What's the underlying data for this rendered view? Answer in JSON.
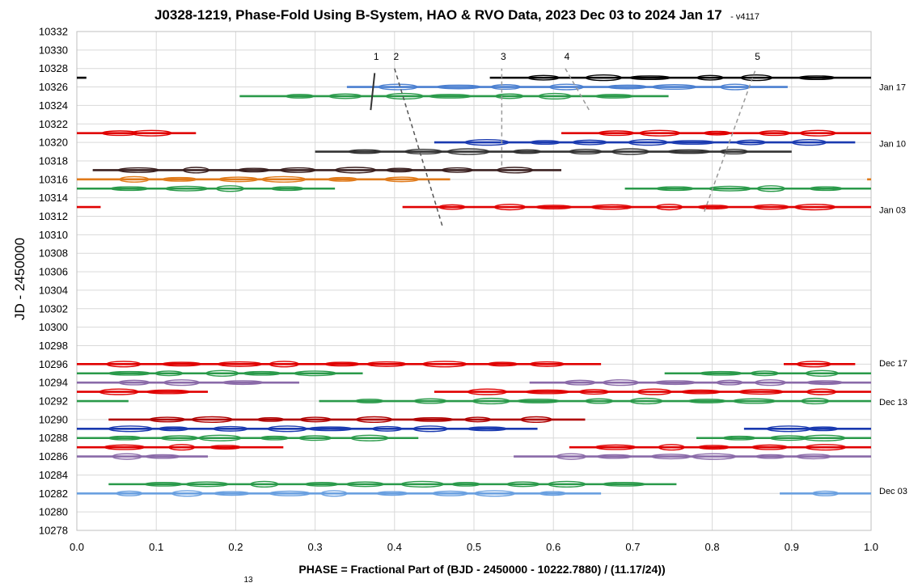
{
  "chart_data": {
    "type": "line",
    "title": "J0328-1219, Phase-Fold Using B-System, HAO & RVO Data, 2023 Dec 03 to 2024 Jan 17",
    "title_suffix": "- v4117",
    "xlabel": "PHASE = Fractional Part of (BJD - 2450000 - 10222.7880) / (11.17/24))",
    "ylabel": "JD - 2450000",
    "footnote": "13",
    "xlim": [
      0.0,
      1.0
    ],
    "ylim": [
      10278,
      10332
    ],
    "x_tick_step": 0.1,
    "y_tick_step": 2,
    "grid": true,
    "date_labels": [
      {
        "text": "Jan 17",
        "y": 10326
      },
      {
        "text": "Jan 10",
        "y": 10319.9
      },
      {
        "text": "Jan 03",
        "y": 10312.7
      },
      {
        "text": "Dec 17",
        "y": 10296.1
      },
      {
        "text": "Dec 13",
        "y": 10291.9
      },
      {
        "text": "Dec 03",
        "y": 10282.3
      }
    ],
    "series": [
      {
        "color": "#000000",
        "y": 10327,
        "segments": [
          [
            0.0,
            0.012
          ],
          [
            0.52,
            1.0
          ]
        ]
      },
      {
        "color": "#4a7fd0",
        "y": 10326,
        "segments": [
          [
            0.34,
            0.895
          ]
        ]
      },
      {
        "color": "#2a9a4a",
        "y": 10325,
        "segments": [
          [
            0.205,
            0.745
          ]
        ]
      },
      {
        "color": "#e00000",
        "y": 10321,
        "segments": [
          [
            0.0,
            0.15
          ],
          [
            0.61,
            1.0
          ]
        ]
      },
      {
        "color": "#1a3ab0",
        "y": 10320,
        "segments": [
          [
            0.45,
            0.98
          ]
        ]
      },
      {
        "color": "#333333",
        "y": 10319,
        "segments": [
          [
            0.3,
            0.9
          ]
        ]
      },
      {
        "color": "#3b2020",
        "y": 10317,
        "segments": [
          [
            0.02,
            0.61
          ]
        ]
      },
      {
        "color": "#e07a1a",
        "y": 10316,
        "segments": [
          [
            0.0,
            0.47
          ],
          [
            0.995,
            1.0
          ]
        ]
      },
      {
        "color": "#2a9a4a",
        "y": 10315,
        "segments": [
          [
            0.0,
            0.325
          ],
          [
            0.69,
            1.0
          ]
        ]
      },
      {
        "color": "#e00000",
        "y": 10313,
        "segments": [
          [
            0.0,
            0.03
          ],
          [
            0.41,
            1.0
          ]
        ]
      },
      {
        "color": "#e00000",
        "y": 10296,
        "segments": [
          [
            0.0,
            0.66
          ],
          [
            0.89,
            0.98
          ]
        ]
      },
      {
        "color": "#2a9a4a",
        "y": 10295,
        "segments": [
          [
            0.0,
            0.36
          ],
          [
            0.74,
            1.0
          ]
        ]
      },
      {
        "color": "#8a6aa8",
        "y": 10294,
        "segments": [
          [
            0.0,
            0.28
          ],
          [
            0.57,
            1.0
          ]
        ]
      },
      {
        "color": "#e00000",
        "y": 10293,
        "segments": [
          [
            0.0,
            0.165
          ],
          [
            0.45,
            1.0
          ]
        ]
      },
      {
        "color": "#2a9a4a",
        "y": 10292,
        "segments": [
          [
            0.0,
            0.065
          ],
          [
            0.305,
            1.0
          ]
        ]
      },
      {
        "color": "#b00000",
        "y": 10290,
        "segments": [
          [
            0.04,
            0.64
          ]
        ]
      },
      {
        "color": "#1a3ab0",
        "y": 10289,
        "segments": [
          [
            0.0,
            0.58
          ],
          [
            0.84,
            1.0
          ]
        ]
      },
      {
        "color": "#2a9a4a",
        "y": 10288,
        "segments": [
          [
            0.0,
            0.43
          ],
          [
            0.78,
            1.0
          ]
        ]
      },
      {
        "color": "#e00000",
        "y": 10287,
        "segments": [
          [
            0.0,
            0.26
          ],
          [
            0.62,
            1.0
          ]
        ]
      },
      {
        "color": "#8a6aa8",
        "y": 10286,
        "segments": [
          [
            0.0,
            0.165
          ],
          [
            0.55,
            1.0
          ]
        ]
      },
      {
        "color": "#2a9a4a",
        "y": 10283,
        "segments": [
          [
            0.04,
            0.755
          ]
        ]
      },
      {
        "color": "#6aa0e0",
        "y": 10282,
        "segments": [
          [
            0.0,
            0.66
          ],
          [
            0.885,
            1.0
          ]
        ]
      }
    ],
    "feature_lines": [
      {
        "label": "1",
        "color": "#333333",
        "points": [
          [
            0.37,
            10323.5
          ],
          [
            0.375,
            10327.5
          ]
        ]
      },
      {
        "label": "2",
        "color": "#555555",
        "points": [
          [
            0.4,
            10328.0
          ],
          [
            0.46,
            10311.0
          ]
        ]
      },
      {
        "label": "3",
        "color": "#999999",
        "points": [
          [
            0.535,
            10317.5
          ],
          [
            0.535,
            10328.0
          ]
        ]
      },
      {
        "label": "4",
        "color": "#999999",
        "points": [
          [
            0.615,
            10328.0
          ],
          [
            0.645,
            10323.5
          ]
        ]
      },
      {
        "label": "5",
        "color": "#999999",
        "points": [
          [
            0.79,
            10312.5
          ],
          [
            0.855,
            10328.0
          ]
        ]
      }
    ]
  }
}
